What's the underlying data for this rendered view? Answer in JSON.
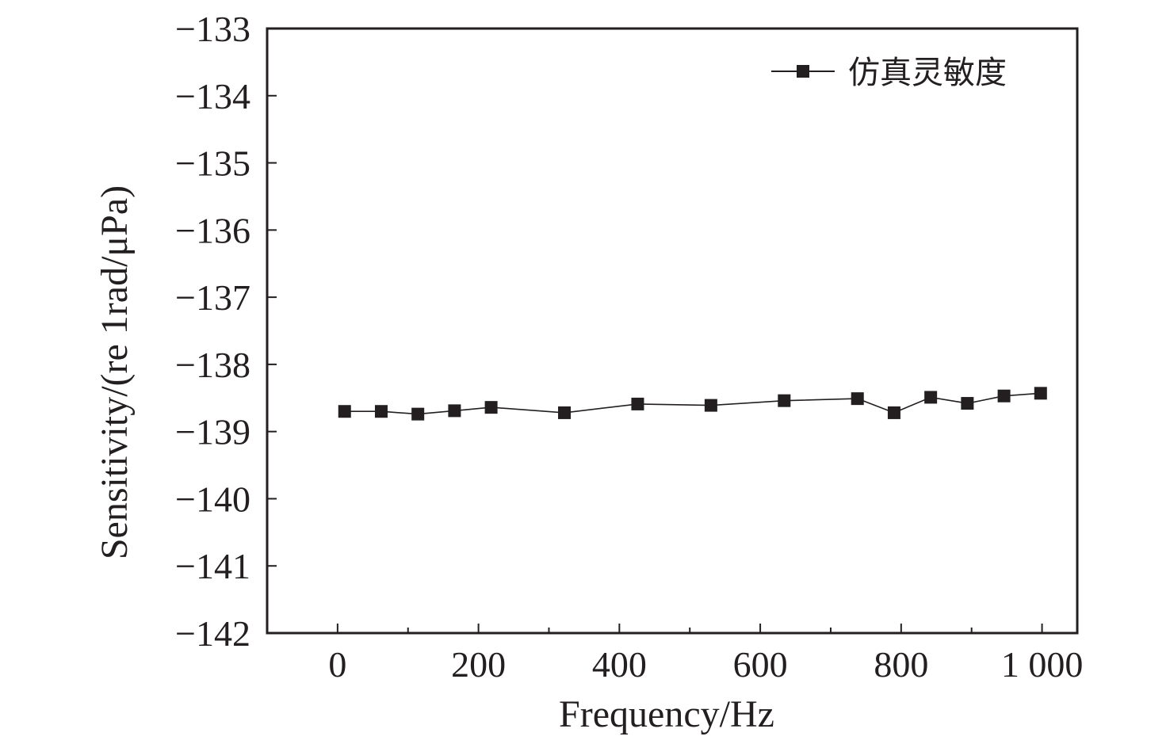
{
  "chart_data": {
    "type": "line",
    "xlabel": "Frequency/Hz",
    "ylabel": "Sensitivity/(re 1rad/μPa)",
    "xlim": [
      -100,
      1050
    ],
    "ylim": [
      -142,
      -133
    ],
    "x_ticks": [
      0,
      200,
      400,
      600,
      800,
      1000
    ],
    "x_tick_labels": [
      "0",
      "200",
      "400",
      "600",
      "800",
      "1 000"
    ],
    "y_ticks": [
      -133,
      -134,
      -135,
      -136,
      -137,
      -138,
      -139,
      -140,
      -141,
      -142
    ],
    "y_tick_labels": [
      "−133",
      "−134",
      "−135",
      "−136",
      "−137",
      "−138",
      "−139",
      "−140",
      "−141",
      "−142"
    ],
    "grid": false,
    "legend_position": "top-right",
    "series": [
      {
        "name": "仿真灵敏度",
        "marker": "square",
        "color": "#231f20",
        "x": [
          10,
          62,
          114,
          166,
          218,
          322,
          426,
          530,
          634,
          738,
          790,
          842,
          894,
          946,
          998
        ],
        "y": [
          -138.7,
          -138.7,
          -138.74,
          -138.69,
          -138.64,
          -138.72,
          -138.59,
          -138.61,
          -138.54,
          -138.51,
          -138.72,
          -138.49,
          -138.58,
          -138.47,
          -138.43
        ]
      }
    ]
  }
}
